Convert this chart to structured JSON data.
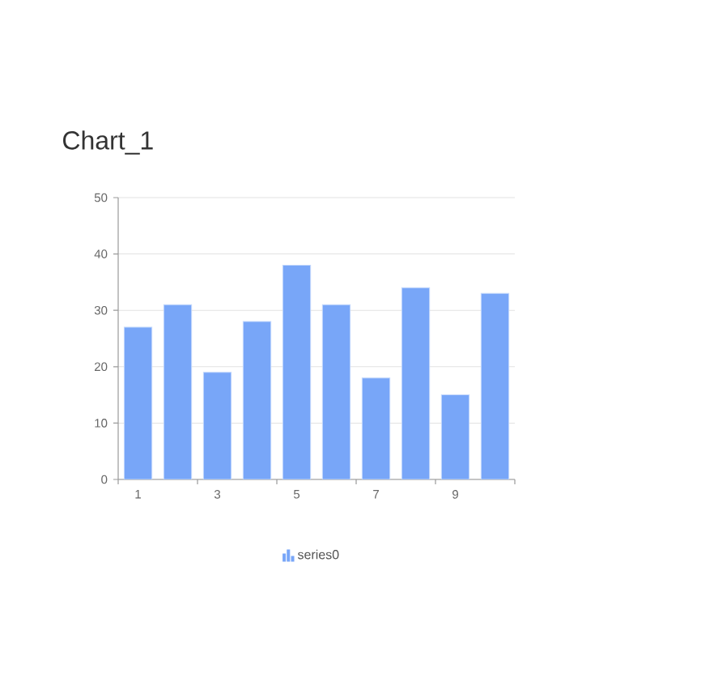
{
  "chart_data": {
    "type": "bar",
    "title": "Chart_1",
    "categories": [
      "1",
      null,
      "3",
      null,
      "5",
      null,
      "7",
      null,
      "9",
      null
    ],
    "series": [
      {
        "name": "series0",
        "color": "#78a6f8",
        "values": [
          27,
          31,
          19,
          28,
          38,
          31,
          18,
          34,
          15,
          33
        ]
      }
    ],
    "ylim": [
      0,
      50
    ],
    "yticks": [
      0,
      10,
      20,
      30,
      40,
      50
    ],
    "grid": "y",
    "legend": "bottom"
  }
}
